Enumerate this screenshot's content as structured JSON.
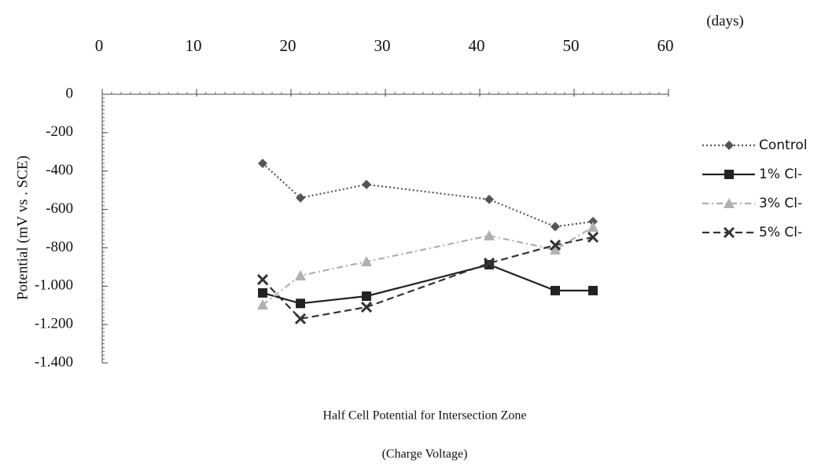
{
  "chart_data": {
    "type": "line",
    "title": "Half Cell Potential for Intersection Zone",
    "subtitle": "(Charge Voltage)",
    "x_label": "(days)",
    "y_label": "Potential (mV vs . SCE)",
    "x": [
      17,
      21,
      28,
      41,
      48,
      52
    ],
    "xlim": [
      0,
      60
    ],
    "xticks": [
      0,
      10,
      20,
      30,
      40,
      50,
      60
    ],
    "ylim": [
      -1400,
      0
    ],
    "yticks": [
      0,
      -200,
      -400,
      -600,
      -800,
      {
        "value": -1000,
        "label": "-1.000"
      },
      {
        "value": -1200,
        "label": "-1.200"
      },
      {
        "value": -1400,
        "label": "-1.400"
      }
    ],
    "x_axis_position": "top",
    "grid": false,
    "legend": "right",
    "series": [
      {
        "name": "Control",
        "color": "#555555",
        "dash": "2,3",
        "marker": "diamond",
        "values": [
          -360,
          -540,
          -470,
          -548,
          -690,
          -663
        ]
      },
      {
        "name": "1% Cl-",
        "color": "#222222",
        "dash": "none",
        "marker": "square",
        "values": [
          -1035,
          -1090,
          -1052,
          -888,
          -1023,
          -1023
        ]
      },
      {
        "name": "3% Cl-",
        "color": "#b0b0b0",
        "dash": "8,4,2,4",
        "marker": "triangle",
        "values": [
          -1097,
          -945,
          -872,
          -737,
          -810,
          -692
        ]
      },
      {
        "name": "5% Cl-",
        "color": "#333333",
        "dash": "9,5",
        "marker": "x",
        "values": [
          -966,
          -1170,
          -1109,
          -880,
          -786,
          -745
        ]
      }
    ]
  }
}
